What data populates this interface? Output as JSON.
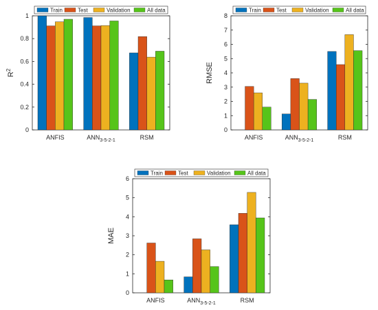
{
  "chart_data": [
    {
      "type": "bar",
      "ylabel": "R",
      "ylabel_sup": "2",
      "ylim": [
        0,
        1
      ],
      "yticks": [
        "0",
        "0.2",
        "0.4",
        "0.6",
        "0.8",
        "1"
      ],
      "categories": [
        {
          "main": "ANFIS",
          "sub": ""
        },
        {
          "main": "ANN",
          "sub": "3-5-2-1"
        },
        {
          "main": "RSM",
          "sub": ""
        }
      ],
      "legend_position": "top",
      "series": [
        {
          "name": "Train",
          "color": "#0072BD",
          "values": [
            1.0,
            0.985,
            0.675
          ]
        },
        {
          "name": "Test",
          "color": "#D95319",
          "values": [
            0.912,
            0.912,
            0.818
          ]
        },
        {
          "name": "Validation",
          "color": "#EDB120",
          "values": [
            0.948,
            0.915,
            0.638
          ]
        },
        {
          "name": "All data",
          "color": "#56C41A",
          "values": [
            0.97,
            0.955,
            0.69
          ]
        }
      ]
    },
    {
      "type": "bar",
      "ylabel": "RMSE",
      "ylabel_sup": "",
      "ylim": [
        0,
        8
      ],
      "yticks": [
        "0",
        "1",
        "2",
        "3",
        "4",
        "5",
        "6",
        "7",
        "8"
      ],
      "categories": [
        {
          "main": "ANFIS",
          "sub": ""
        },
        {
          "main": "ANN",
          "sub": "3-5-2-1"
        },
        {
          "main": "RSM",
          "sub": ""
        }
      ],
      "legend_position": "top",
      "series": [
        {
          "name": "Train",
          "color": "#0072BD",
          "values": [
            0.0,
            1.12,
            5.5
          ]
        },
        {
          "name": "Test",
          "color": "#D95319",
          "values": [
            3.05,
            3.6,
            4.58
          ]
        },
        {
          "name": "Validation",
          "color": "#EDB120",
          "values": [
            2.6,
            3.28,
            6.68
          ]
        },
        {
          "name": "All data",
          "color": "#56C41A",
          "values": [
            1.6,
            2.14,
            5.56
          ]
        }
      ]
    },
    {
      "type": "bar",
      "ylabel": "MAE",
      "ylabel_sup": "",
      "ylim": [
        0,
        6
      ],
      "yticks": [
        "0",
        "1",
        "2",
        "3",
        "4",
        "5",
        "6"
      ],
      "categories": [
        {
          "main": "ANFIS",
          "sub": ""
        },
        {
          "main": "ANN",
          "sub": "3-5-2-1"
        },
        {
          "main": "RSM",
          "sub": ""
        }
      ],
      "legend_position": "top",
      "series": [
        {
          "name": "Train",
          "color": "#0072BD",
          "values": [
            0.0,
            0.84,
            3.58
          ]
        },
        {
          "name": "Test",
          "color": "#D95319",
          "values": [
            2.62,
            2.84,
            4.18
          ]
        },
        {
          "name": "Validation",
          "color": "#EDB120",
          "values": [
            1.66,
            2.26,
            5.28
          ]
        },
        {
          "name": "All data",
          "color": "#56C41A",
          "values": [
            0.68,
            1.38,
            3.94
          ]
        }
      ]
    }
  ]
}
